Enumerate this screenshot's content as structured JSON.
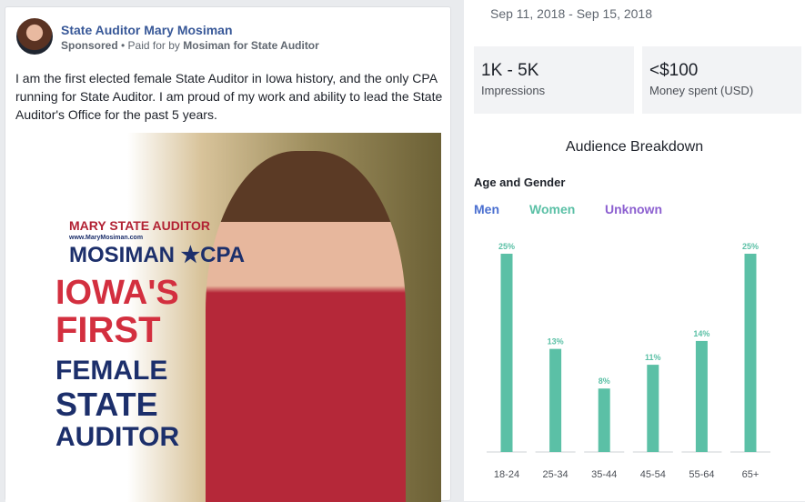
{
  "post": {
    "page_name": "State Auditor Mary Mosiman",
    "sponsored": "Sponsored",
    "paid_for_prefix": " • Paid for by ",
    "paid_for": "Mosiman for State Auditor",
    "text": "I am the first elected female State Auditor in Iowa history, and the only CPA running for State Auditor. I am proud of my work and ability to lead the State Auditor's Office for the past 5 years.",
    "image": {
      "logo_top": "MARY STATE AUDITOR",
      "logo_main": "MOSIMAN ★CPA",
      "logo_url": "www.MaryMosiman.com",
      "line1": "IOWA'S",
      "line2": "FIRST",
      "line3": "FEMALE",
      "line4": "STATE",
      "line5": "AUDITOR"
    }
  },
  "insights": {
    "dates": "Sep 11, 2018 - Sep 15, 2018",
    "impressions": {
      "value": "1K - 5K",
      "label": "Impressions"
    },
    "spend": {
      "value": "<$100",
      "label": "Money spent (USD)"
    },
    "breakdown_title": "Audience Breakdown",
    "section": "Age and Gender",
    "legend": [
      {
        "label": "Men",
        "color": "#4a6fd0"
      },
      {
        "label": "Women",
        "color": "#5bc0a6"
      },
      {
        "label": "Unknown",
        "color": "#8c5fd0"
      }
    ]
  },
  "chart_data": {
    "type": "bar",
    "categories": [
      "18-24",
      "25-34",
      "35-44",
      "45-54",
      "55-64",
      "65+"
    ],
    "series": [
      {
        "name": "Women",
        "values": [
          25,
          13,
          8,
          11,
          14,
          25
        ]
      }
    ],
    "data_labels": [
      "25%",
      "13%",
      "8%",
      "11%",
      "14%",
      "25%"
    ],
    "color": "#5bc0a6",
    "grid": false
  }
}
